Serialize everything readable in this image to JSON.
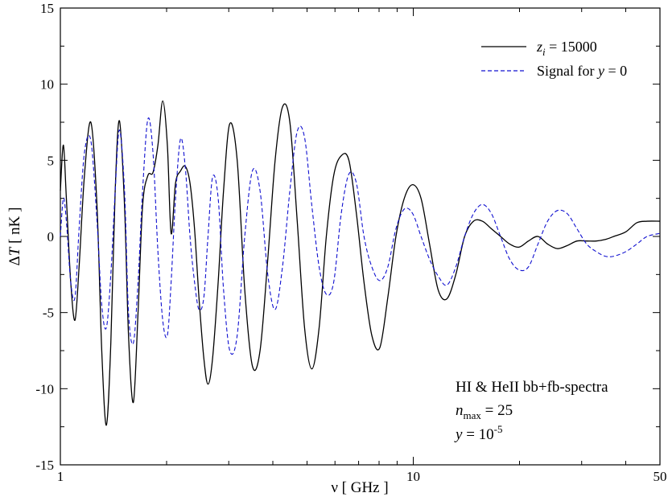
{
  "chart_data": {
    "type": "line",
    "xlabel": "ν [ GHz ]",
    "ylabel": "ΔT [ nK ]",
    "xscale": "log",
    "xlim": [
      1,
      50
    ],
    "ylim": [
      -15,
      15
    ],
    "x_ticks": [
      "1",
      "10",
      "50"
    ],
    "y_ticks": [
      "15",
      "10",
      "5",
      "0",
      "-5",
      "-10",
      "-15"
    ],
    "grid": false,
    "legend_position": "top-right",
    "series": [
      {
        "name": "z_i = 15000",
        "color": "#000000",
        "style": "solid",
        "x": [
          1.0,
          1.02,
          1.04,
          1.07,
          1.1,
          1.13,
          1.17,
          1.22,
          1.27,
          1.31,
          1.35,
          1.39,
          1.43,
          1.47,
          1.52,
          1.56,
          1.61,
          1.66,
          1.71,
          1.77,
          1.83,
          1.89,
          1.95,
          2.01,
          2.06,
          2.12,
          2.19,
          2.26,
          2.33,
          2.4,
          2.47,
          2.55,
          2.62,
          2.7,
          2.8,
          2.9,
          3.02,
          3.17,
          3.33,
          3.5,
          3.68,
          3.87,
          4.06,
          4.26,
          4.47,
          4.69,
          4.92,
          5.16,
          5.41,
          5.67,
          5.95,
          6.25,
          6.57,
          6.9,
          7.25,
          7.63,
          8.04,
          8.47,
          8.93,
          9.43,
          9.96,
          10.52,
          11.12,
          11.76,
          12.45,
          13.2,
          13.98,
          14.81,
          15.7,
          16.65,
          17.67,
          18.76,
          19.94,
          21.2,
          22.56,
          24.02,
          25.6,
          27.3,
          29.1,
          31.0,
          33.0,
          35.0,
          37.0,
          40.0,
          43.0,
          46.0,
          50.0
        ],
        "y": [
          3.0,
          6.0,
          2.5,
          -3.0,
          -5.5,
          -2.0,
          4.0,
          7.5,
          2.0,
          -7.5,
          -12.4,
          -7.0,
          3.0,
          7.6,
          2.0,
          -6.5,
          -10.9,
          -5.0,
          2.0,
          4.0,
          4.2,
          6.0,
          8.9,
          6.0,
          0.2,
          3.5,
          4.3,
          4.6,
          3.5,
          0.5,
          -4.0,
          -8.0,
          -9.7,
          -8.0,
          -3.0,
          3.0,
          7.4,
          5.0,
          -3.5,
          -8.5,
          -7.5,
          -1.5,
          5.0,
          8.5,
          7.5,
          1.0,
          -6.0,
          -8.7,
          -6.0,
          0.0,
          4.0,
          5.3,
          5.0,
          1.5,
          -3.0,
          -6.5,
          -7.3,
          -4.0,
          0.0,
          2.5,
          3.4,
          2.5,
          -0.5,
          -3.5,
          -4.1,
          -2.5,
          0.0,
          1.0,
          1.0,
          0.5,
          0.0,
          -0.5,
          -0.7,
          -0.3,
          0.0,
          -0.5,
          -0.8,
          -0.6,
          -0.3,
          -0.3,
          -0.3,
          -0.2,
          0.0,
          0.3,
          0.9,
          1.0,
          1.0
        ]
      },
      {
        "name": "Signal for y = 0",
        "color": "#1010d0",
        "style": "dashed",
        "x": [
          1.0,
          1.02,
          1.04,
          1.07,
          1.1,
          1.13,
          1.17,
          1.22,
          1.27,
          1.31,
          1.35,
          1.39,
          1.43,
          1.47,
          1.52,
          1.56,
          1.61,
          1.66,
          1.71,
          1.77,
          1.83,
          1.89,
          1.95,
          2.01,
          2.06,
          2.12,
          2.19,
          2.26,
          2.33,
          2.4,
          2.47,
          2.55,
          2.62,
          2.7,
          2.8,
          2.9,
          3.02,
          3.17,
          3.33,
          3.5,
          3.68,
          3.87,
          4.06,
          4.26,
          4.47,
          4.69,
          4.92,
          5.16,
          5.41,
          5.67,
          5.95,
          6.25,
          6.57,
          6.9,
          7.25,
          7.63,
          8.04,
          8.47,
          8.93,
          9.43,
          9.96,
          10.52,
          11.12,
          11.76,
          12.45,
          13.2,
          13.98,
          14.81,
          15.7,
          16.65,
          17.67,
          18.76,
          19.94,
          21.2,
          22.56,
          24.02,
          25.6,
          27.3,
          29.1,
          31.0,
          33.0,
          35.0,
          37.0,
          40.0,
          43.0,
          46.0,
          50.0
        ],
        "y": [
          0.0,
          2.5,
          1.0,
          -3.0,
          -4.0,
          0.5,
          5.5,
          6.3,
          1.0,
          -4.5,
          -6.0,
          -2.5,
          3.0,
          7.0,
          3.0,
          -5.0,
          -7.0,
          -3.0,
          3.0,
          7.7,
          5.5,
          -1.0,
          -5.5,
          -6.5,
          -3.0,
          2.5,
          6.4,
          4.5,
          0.0,
          -3.0,
          -4.8,
          -4.0,
          0.0,
          3.9,
          2.5,
          -3.5,
          -7.5,
          -6.5,
          0.0,
          4.3,
          3.0,
          -2.5,
          -4.8,
          -2.0,
          3.0,
          6.9,
          6.5,
          2.0,
          -2.0,
          -3.8,
          -3.0,
          1.5,
          4.1,
          3.5,
          0.0,
          -2.0,
          -2.9,
          -2.0,
          0.5,
          1.8,
          1.5,
          0.0,
          -1.5,
          -2.6,
          -3.2,
          -2.0,
          0.0,
          1.5,
          2.1,
          1.5,
          0.0,
          -1.5,
          -2.2,
          -2.0,
          -0.5,
          1.0,
          1.7,
          1.5,
          0.5,
          -0.5,
          -1.0,
          -1.3,
          -1.3,
          -1.0,
          -0.5,
          0.0,
          0.2
        ]
      }
    ],
    "annotation_lines": [
      "HI & HeII bb+fb-spectra",
      "n_max = 25",
      "y = 10^-5"
    ]
  },
  "legend": {
    "entry1_var": "z",
    "entry1_sub": "i",
    "entry1_rest": " = 15000",
    "entry2_prefix": "Signal for ",
    "entry2_var": "y",
    "entry2_rest": " = 0"
  },
  "annotation": {
    "line1": "HI & HeII bb+fb-spectra",
    "line2_var": "n",
    "line2_sub": "max",
    "line2_rest": " = 25",
    "line3_var": "y",
    "line3_mid": " = 10",
    "line3_sup": "-5"
  },
  "axes": {
    "ylabel_delta": "Δ",
    "ylabel_var": "T",
    "ylabel_rest": " [ nK ]"
  }
}
